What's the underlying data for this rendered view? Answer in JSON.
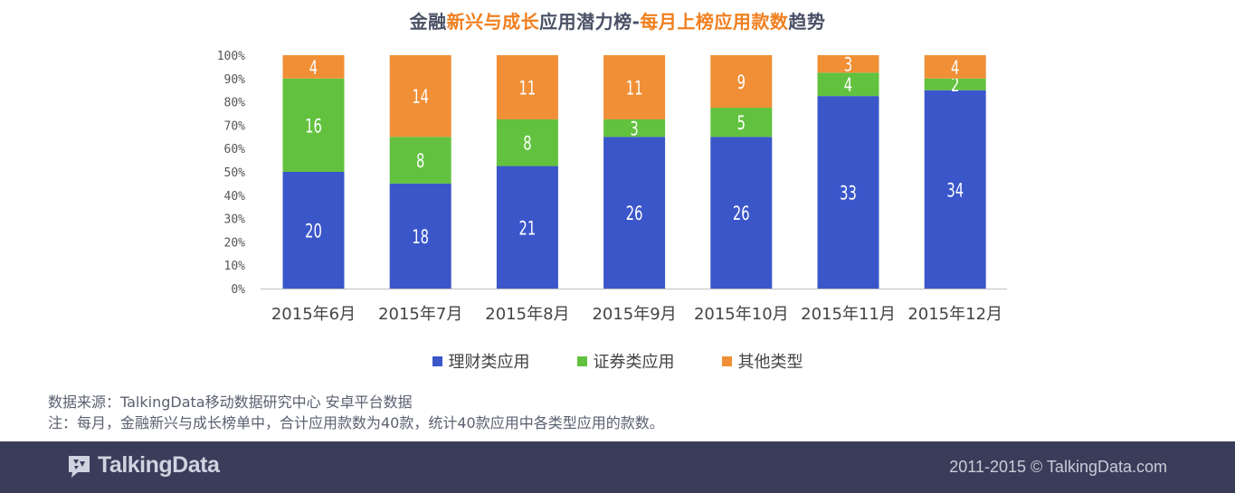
{
  "title": {
    "part1": "金融",
    "part2": "新兴与成长",
    "part3": "应用潜力榜-",
    "part4": "每月上榜应用款数",
    "part5": "趋势"
  },
  "chart_data": {
    "type": "bar",
    "stacked": true,
    "percent_axis": true,
    "categories": [
      "2015年6月",
      "2015年7月",
      "2015年8月",
      "2015年9月",
      "2015年10月",
      "2015年11月",
      "2015年12月"
    ],
    "series": [
      {
        "name": "理财类应用",
        "color": "#3b56c9",
        "values": [
          20,
          18,
          21,
          26,
          26,
          33,
          34
        ]
      },
      {
        "name": "证券类应用",
        "color": "#62c23f",
        "values": [
          16,
          8,
          8,
          3,
          5,
          4,
          2
        ]
      },
      {
        "name": "其他类型",
        "color": "#f08f36",
        "values": [
          4,
          14,
          11,
          11,
          9,
          3,
          4
        ]
      }
    ],
    "y_ticks": [
      "0%",
      "10%",
      "20%",
      "30%",
      "40%",
      "50%",
      "60%",
      "70%",
      "80%",
      "90%",
      "100%"
    ],
    "ylim": [
      0,
      100
    ],
    "legend_position": "bottom"
  },
  "notes": {
    "source": "数据来源：TalkingData移动数据研究中心   安卓平台数据",
    "note": "注：每月，金融新兴与成长榜单中，合计应用款数为40款，统计40款应用中各类型应用的款数。"
  },
  "footer": {
    "logo": "TalkingData",
    "copyright": "2011-2015 © TalkingData.com",
    "bg_color": "#3a3d5a"
  }
}
